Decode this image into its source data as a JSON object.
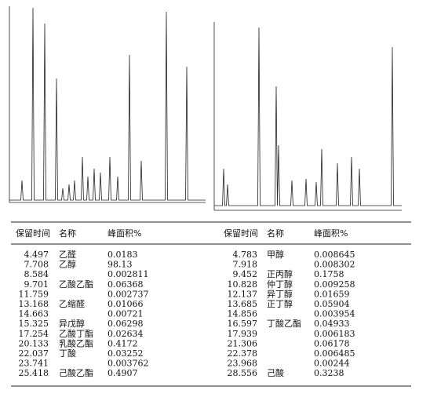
{
  "table_left": {
    "header": [
      "保留时间",
      "名称",
      "峰面积%"
    ],
    "rows": [
      {
        "time": "4.497",
        "name": "乙醛",
        "area": "0.0183"
      },
      {
        "time": "7.708",
        "name": "乙醇",
        "area": "98.13"
      },
      {
        "time": "8.584",
        "area": "0.002811"
      },
      {
        "time": "9.701",
        "name": "乙酸乙酯",
        "area": "0.06368"
      },
      {
        "time": "11.759",
        "area": "0.002737"
      },
      {
        "time": "13.168",
        "name": "乙缩醛",
        "area": "0.01066"
      },
      {
        "time": "14.663",
        "area": "0.00721"
      },
      {
        "time": "15.325",
        "name": "异戊醇",
        "area": "0.06298"
      },
      {
        "time": "17.254",
        "name": "乙酸丁酯",
        "area": "0.02634"
      },
      {
        "time": "20.133",
        "name": "乳酸乙酯",
        "area": "0.4172"
      },
      {
        "time": "22.037",
        "name": "丁酸",
        "area": "0.03252"
      },
      {
        "time": "23.741",
        "area": "0.003762"
      },
      {
        "time": "25.418",
        "name": "己酸乙酯",
        "area": "0.4907"
      }
    ]
  },
  "table_right": {
    "header": [
      "保留时间",
      "名称",
      "峰面积%"
    ],
    "rows": [
      {
        "time": "4.783",
        "name": "甲醇",
        "area": "0.008645"
      },
      {
        "time": "7.918",
        "area": "0.008302"
      },
      {
        "time": "9.452",
        "name": "正丙醇",
        "area": "0.1758"
      },
      {
        "time": "10.828",
        "name": "仲丁醇",
        "area": "0.009258"
      },
      {
        "time": "12.137",
        "name": "异丁醇",
        "area": "0.01659"
      },
      {
        "time": "13.685",
        "name": "正丁醇",
        "area": "0.05904"
      },
      {
        "time": "14.856",
        "area": "0.003954"
      },
      {
        "time": "16.597",
        "name": "丁酸乙酯",
        "area": "0.04933"
      },
      {
        "time": "17.939",
        "area": "0.006183"
      },
      {
        "time": "21.306",
        "area": "0.06178"
      },
      {
        "time": "22.378",
        "area": "0.006485"
      },
      {
        "time": "23.968",
        "area": "0.00244"
      },
      {
        "time": "28.556",
        "name": "己酸",
        "area": "0.3238"
      }
    ]
  }
}
